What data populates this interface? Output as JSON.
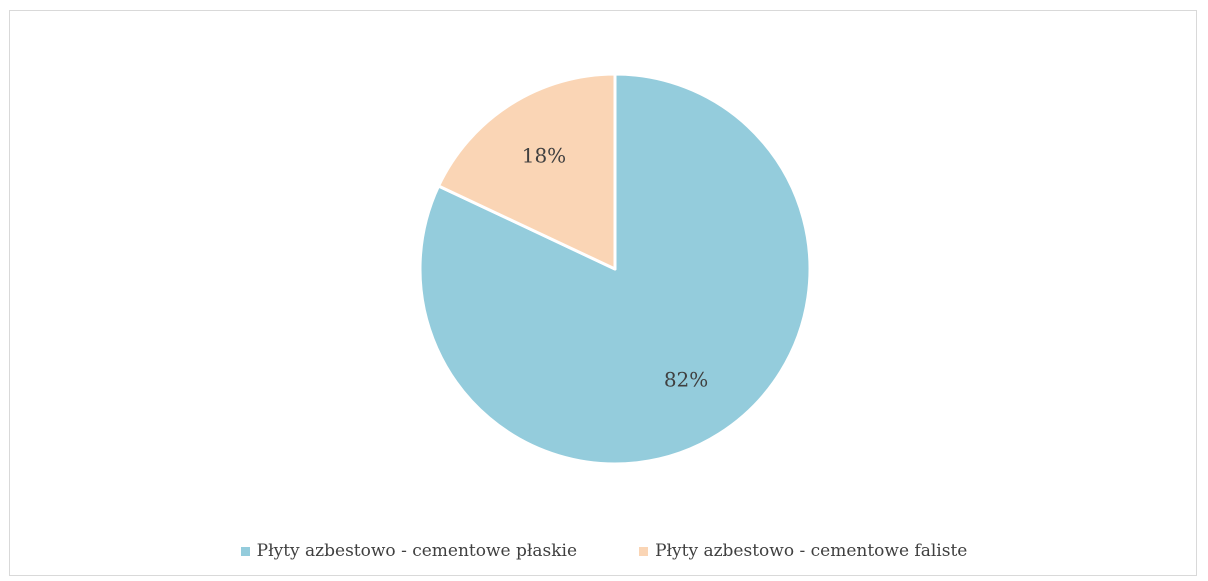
{
  "chart_data": {
    "type": "pie",
    "title": "",
    "slices": [
      {
        "label": "Płyty azbestowo - cementowe płaskie",
        "value": 82,
        "display": "82%",
        "color": "#94ccdc"
      },
      {
        "label": "Płyty azbestowo - cementowe faliste",
        "value": 18,
        "display": "18%",
        "color": "#fad5b5"
      }
    ],
    "start_angle_deg": 0,
    "direction": "clockwise",
    "legend_position": "bottom"
  }
}
